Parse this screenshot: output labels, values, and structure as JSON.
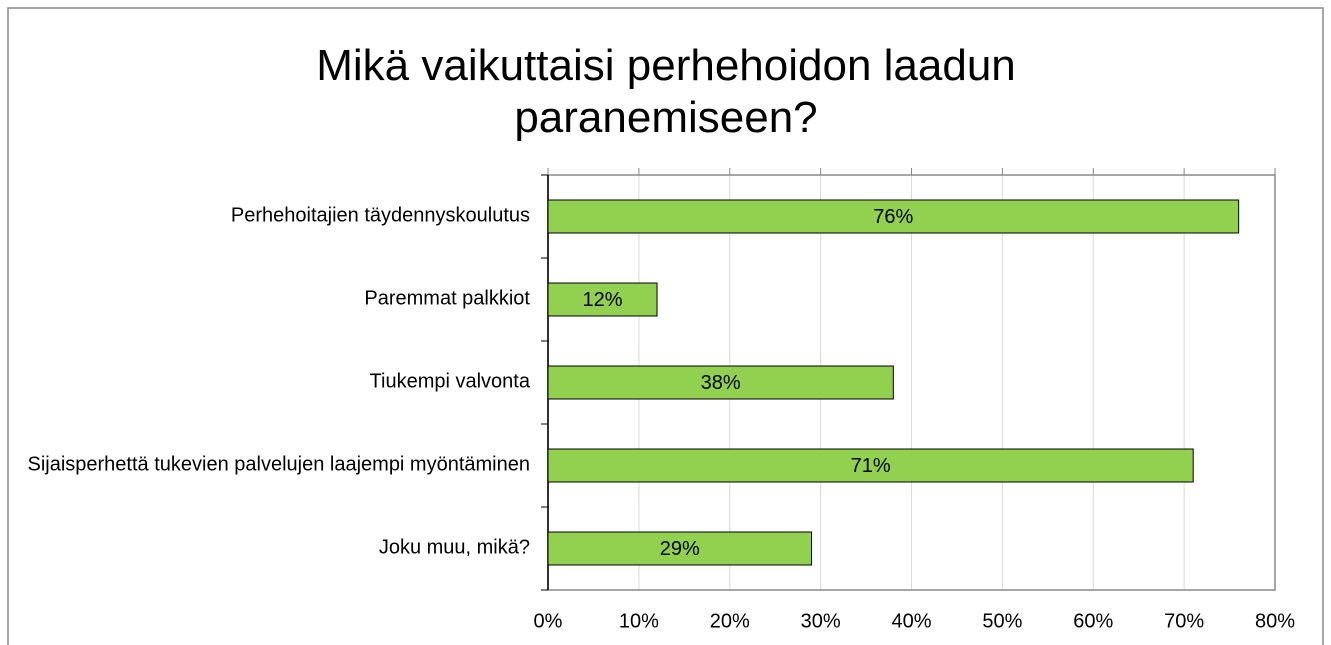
{
  "chart_data": {
    "type": "bar",
    "orientation": "horizontal",
    "title": "Mikä vaikuttaisi perhehoidon laadun paranemiseen?",
    "categories": [
      "Perhehoitajien täydennyskoulutus",
      "Paremmat palkkiot",
      "Tiukempi valvonta",
      "Sijaisperhettä tukevien palvelujen laajempi myöntäminen",
      "Joku muu, mikä?"
    ],
    "values": [
      76,
      12,
      38,
      71,
      29
    ],
    "value_labels": [
      "76%",
      "12%",
      "38%",
      "71%",
      "29%"
    ],
    "color": "#92d050",
    "xlim": [
      0,
      80
    ],
    "xticks": [
      {
        "value": 0,
        "label": "0%"
      },
      {
        "value": 10,
        "label": "10%"
      },
      {
        "value": 20,
        "label": "20%"
      },
      {
        "value": 30,
        "label": "30%"
      },
      {
        "value": 40,
        "label": "40%"
      },
      {
        "value": 50,
        "label": "50%"
      },
      {
        "value": 60,
        "label": "60%"
      },
      {
        "value": 70,
        "label": "70%"
      },
      {
        "value": 80,
        "label": "80%"
      }
    ],
    "grid": true
  }
}
